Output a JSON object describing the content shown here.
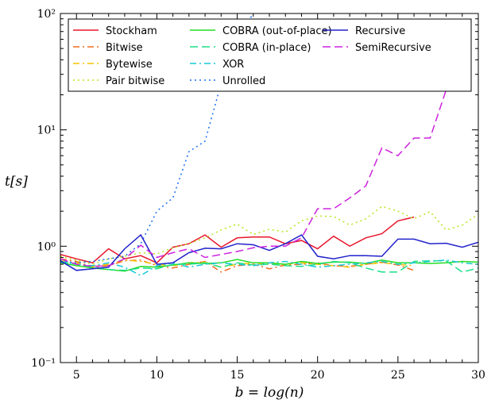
{
  "chart_data": {
    "type": "line",
    "title": "",
    "xlabel": "b = log(n)",
    "ylabel": "t[s]",
    "xlim": [
      4,
      30
    ],
    "ylim": [
      0.1,
      100
    ],
    "yscale": "log",
    "x_ticks": [
      5,
      10,
      15,
      20,
      25,
      30
    ],
    "y_ticks": [
      {
        "value": 0.1,
        "label": "10⁻¹"
      },
      {
        "value": 1,
        "label": "10⁰"
      },
      {
        "value": 10,
        "label": "10¹"
      },
      {
        "value": 100,
        "label": "10²"
      }
    ],
    "legend_position": "top",
    "series": [
      {
        "name": "Stockham",
        "color": "#e8172c",
        "dash": "solid",
        "x": [
          4,
          5,
          6,
          7,
          8,
          9,
          10,
          11,
          12,
          13,
          14,
          15,
          16,
          17,
          18,
          19,
          20,
          21,
          22,
          23,
          24,
          25,
          26
        ],
        "values": [
          0.85,
          0.78,
          0.72,
          0.95,
          0.78,
          0.83,
          0.72,
          0.98,
          1.05,
          1.25,
          0.98,
          1.18,
          1.2,
          1.2,
          1.05,
          1.12,
          0.95,
          1.22,
          1.0,
          1.18,
          1.28,
          1.65,
          1.78
        ]
      },
      {
        "name": "Bitwise",
        "color": "#f06d1d",
        "dash": "dashdot",
        "x": [
          4,
          5,
          6,
          7,
          8,
          9,
          10,
          11,
          12,
          13,
          14,
          15,
          16,
          17,
          18,
          19,
          20,
          21,
          22,
          23,
          24,
          25,
          26
        ],
        "values": [
          0.78,
          0.74,
          0.66,
          0.68,
          0.75,
          0.76,
          0.68,
          0.65,
          0.7,
          0.74,
          0.6,
          0.68,
          0.7,
          0.64,
          0.69,
          0.7,
          0.72,
          0.68,
          0.67,
          0.7,
          0.73,
          0.69,
          0.62
        ]
      },
      {
        "name": "Bytewise",
        "color": "#f5c400",
        "dash": "dashdot",
        "x": [
          4,
          5,
          6,
          7,
          8,
          9,
          10,
          11,
          12,
          13,
          14,
          15,
          16,
          17,
          18,
          19,
          20,
          21,
          22,
          23,
          24,
          25,
          26
        ],
        "values": [
          0.75,
          0.72,
          0.67,
          0.7,
          0.76,
          0.74,
          0.7,
          0.68,
          0.72,
          0.73,
          0.66,
          0.7,
          0.72,
          0.7,
          0.7,
          0.72,
          0.7,
          0.68,
          0.66,
          0.7,
          0.72,
          0.7,
          0.68
        ]
      },
      {
        "name": "Pair bitwise",
        "color": "#b5e61d",
        "dash": "dotted",
        "x": [
          4,
          5,
          6,
          7,
          8,
          9,
          10,
          11,
          12,
          13,
          14,
          15,
          16,
          17,
          18,
          19,
          20,
          21,
          22,
          23,
          24,
          25,
          26,
          27,
          28,
          29,
          30
        ],
        "values": [
          0.82,
          0.76,
          0.7,
          0.78,
          0.82,
          0.88,
          0.86,
          0.97,
          1.05,
          1.18,
          1.38,
          1.55,
          1.26,
          1.4,
          1.32,
          1.65,
          1.82,
          1.8,
          1.52,
          1.72,
          2.2,
          2.0,
          1.72,
          1.98,
          1.38,
          1.52,
          1.88
        ]
      },
      {
        "name": "COBRA (out-of-place)",
        "color": "#22dd22",
        "dash": "solid",
        "x": [
          4,
          5,
          6,
          7,
          8,
          9,
          10,
          11,
          12,
          13,
          14,
          15,
          16,
          17,
          18,
          19,
          20,
          21,
          22,
          23,
          24,
          25,
          26,
          27,
          28,
          29,
          30
        ],
        "values": [
          0.72,
          0.68,
          0.65,
          0.63,
          0.61,
          0.67,
          0.66,
          0.69,
          0.72,
          0.71,
          0.72,
          0.77,
          0.72,
          0.72,
          0.7,
          0.74,
          0.71,
          0.73,
          0.73,
          0.71,
          0.76,
          0.72,
          0.72,
          0.71,
          0.72,
          0.74,
          0.73
        ]
      },
      {
        "name": "COBRA (in-place)",
        "color": "#1ddf8a",
        "dash": "dashed",
        "x": [
          4,
          5,
          6,
          7,
          8,
          9,
          10,
          11,
          12,
          13,
          14,
          15,
          16,
          17,
          18,
          19,
          20,
          21,
          22,
          23,
          24,
          25,
          26,
          27,
          28,
          29,
          30
        ],
        "values": [
          0.74,
          0.7,
          0.66,
          0.63,
          0.62,
          0.65,
          0.64,
          0.7,
          0.7,
          0.72,
          0.66,
          0.72,
          0.69,
          0.7,
          0.68,
          0.67,
          0.7,
          0.74,
          0.72,
          0.65,
          0.6,
          0.6,
          0.74,
          0.75,
          0.75,
          0.6,
          0.65
        ]
      },
      {
        "name": "XOR",
        "color": "#17c8d8",
        "dash": "dashdot",
        "x": [
          4,
          5,
          6,
          7,
          8,
          9,
          10,
          11,
          12,
          13,
          14,
          15,
          16,
          17,
          18,
          19,
          20,
          21,
          22,
          23,
          24,
          25,
          26,
          27,
          28,
          29,
          30
        ],
        "values": [
          0.73,
          0.7,
          0.68,
          0.72,
          0.66,
          0.56,
          0.68,
          0.72,
          0.66,
          0.7,
          0.72,
          0.7,
          0.68,
          0.72,
          0.74,
          0.7,
          0.66,
          0.68,
          0.7,
          0.72,
          0.74,
          0.7,
          0.72,
          0.74,
          0.76,
          0.72,
          0.7
        ]
      },
      {
        "name": "Unrolled",
        "color": "#1a6ff0",
        "dash": "dotted",
        "x": [
          4,
          5,
          6,
          7,
          8,
          9,
          10,
          11,
          12,
          13,
          14,
          15,
          16
        ],
        "values": [
          0.75,
          0.72,
          0.74,
          0.78,
          0.82,
          1.05,
          2.0,
          2.6,
          6.5,
          8.0,
          25.0,
          60.0,
          100.0
        ]
      },
      {
        "name": "Recursive",
        "color": "#2222cc",
        "dash": "solid",
        "x": [
          4,
          5,
          6,
          7,
          8,
          9,
          10,
          11,
          12,
          13,
          14,
          15,
          16,
          17,
          18,
          19,
          20,
          21,
          22,
          23,
          24,
          25,
          26,
          27,
          28,
          29,
          30
        ],
        "values": [
          0.75,
          0.62,
          0.64,
          0.66,
          0.95,
          1.25,
          0.7,
          0.72,
          0.88,
          0.96,
          0.95,
          1.05,
          1.03,
          0.92,
          1.05,
          1.25,
          0.82,
          0.78,
          0.83,
          0.83,
          0.82,
          1.15,
          1.15,
          1.05,
          1.06,
          0.98,
          1.08
        ]
      },
      {
        "name": "SemiRecursive",
        "color": "#cc22dd",
        "dash": "dashed",
        "x": [
          4,
          5,
          6,
          7,
          8,
          9,
          10,
          11,
          12,
          13,
          14,
          15,
          16,
          17,
          18,
          19,
          20,
          21,
          22,
          23,
          24,
          25,
          26,
          27,
          28
        ],
        "values": [
          0.78,
          0.7,
          0.67,
          0.68,
          0.78,
          1.02,
          0.8,
          0.88,
          0.95,
          0.8,
          0.85,
          0.9,
          0.97,
          1.0,
          1.0,
          1.18,
          2.1,
          2.1,
          2.6,
          3.3,
          7.0,
          6.0,
          8.5,
          8.5,
          22.0
        ]
      }
    ]
  }
}
